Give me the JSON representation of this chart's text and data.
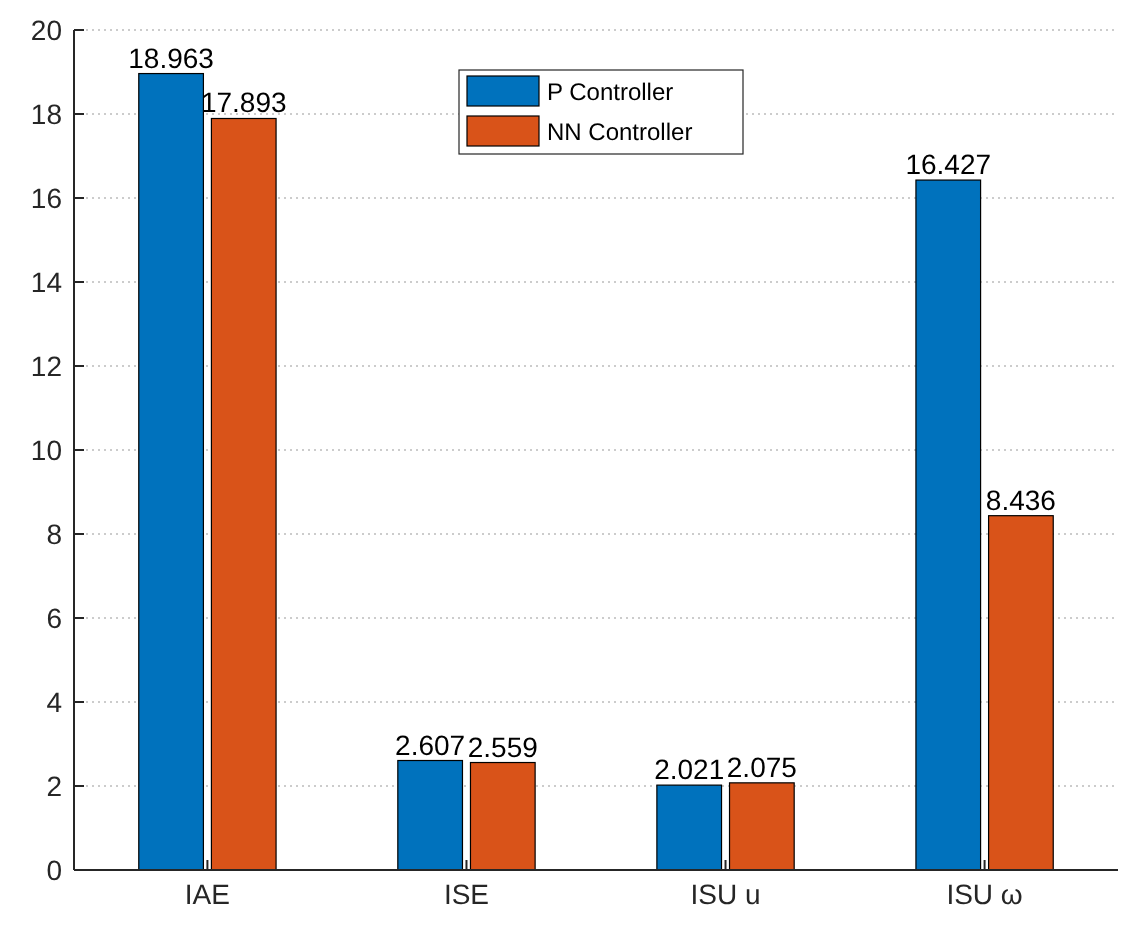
{
  "chart_data": {
    "type": "bar",
    "categories": [
      "IAE",
      "ISE",
      "ISU u",
      "ISU ω"
    ],
    "series": [
      {
        "name": "P Controller",
        "color": "#0072bd",
        "values": [
          18.963,
          2.607,
          2.021,
          16.427
        ]
      },
      {
        "name": "NN Controller",
        "color": "#d95319",
        "values": [
          17.893,
          2.559,
          2.075,
          8.436
        ]
      }
    ],
    "ylim": [
      0,
      20
    ],
    "yticks": [
      0,
      2,
      4,
      6,
      8,
      10,
      12,
      14,
      16,
      18,
      20
    ],
    "grid": "y",
    "legend": "top",
    "data_labels": true
  }
}
